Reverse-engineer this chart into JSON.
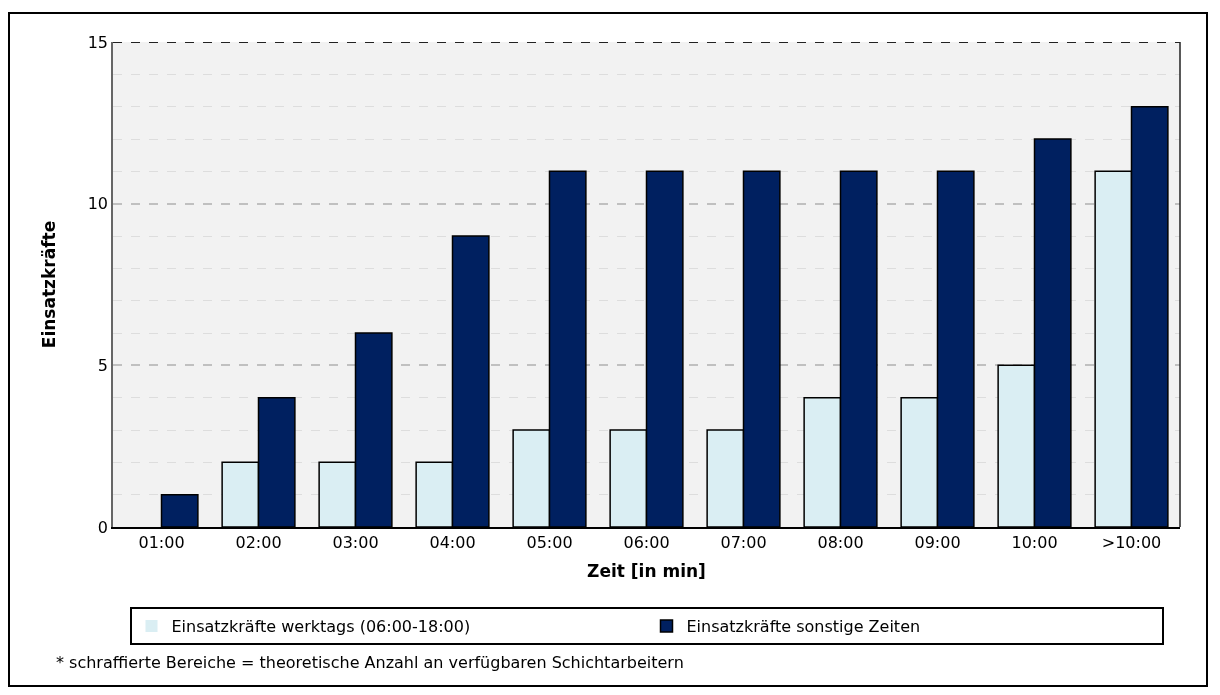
{
  "chart_data": {
    "type": "bar",
    "xlabel": "Zeit [in min]",
    "ylabel": "Einsatzkräfte",
    "categories": [
      "01:00",
      "02:00",
      "03:00",
      "04:00",
      "05:00",
      "06:00",
      "07:00",
      "08:00",
      "09:00",
      "10:00",
      ">10:00"
    ],
    "series": [
      {
        "name": "Einsatzkräfte werktags (06:00-18:00)",
        "color": "#daeef3",
        "values": [
          0,
          2,
          2,
          2,
          3,
          3,
          3,
          4,
          4,
          5,
          11
        ]
      },
      {
        "name": "Einsatzkräfte sonstige Zeiten",
        "color": "#002060",
        "values": [
          1,
          4,
          6,
          9,
          11,
          11,
          11,
          11,
          11,
          12,
          13
        ]
      }
    ],
    "ylim": [
      0,
      15
    ],
    "yticks": [
      0,
      5,
      10,
      15
    ],
    "grid": "y",
    "legend": "bottom",
    "annotations": [
      "* schraffierte Bereiche = theoretische Anzahl an verfügbaren Schichtarbeitern"
    ]
  }
}
